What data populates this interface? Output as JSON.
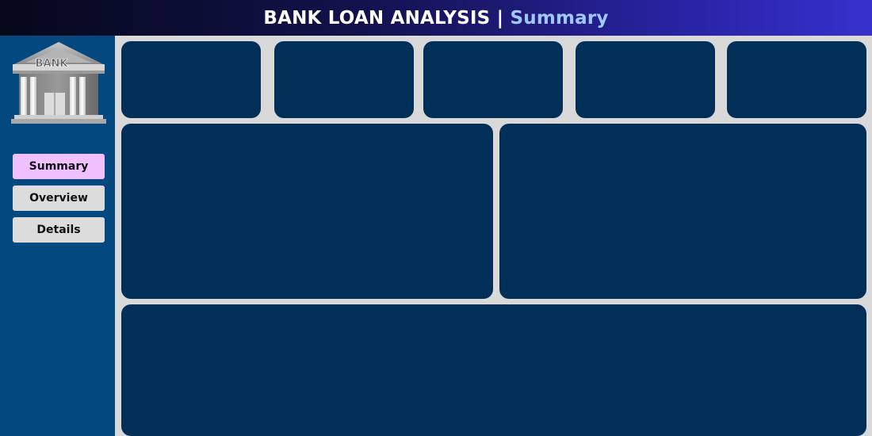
{
  "header": {
    "title": "BANK LOAN ANALYSIS",
    "separator": "|",
    "subtitle": "Summary"
  },
  "logo": {
    "sign_text": "BANK"
  },
  "nav": {
    "items": [
      {
        "label": "Summary",
        "active": true
      },
      {
        "label": "Overview",
        "active": false
      },
      {
        "label": "Details",
        "active": false
      }
    ]
  },
  "colors": {
    "header_gradient_start": "#05081a",
    "header_gradient_end": "#3730cc",
    "sidebar": "#03497f",
    "card": "#022f57",
    "canvas": "#d9d9d9",
    "nav_active": "#f1c0ff",
    "nav_inactive": "#dcdcdc",
    "subtitle": "#9fc8ff"
  }
}
